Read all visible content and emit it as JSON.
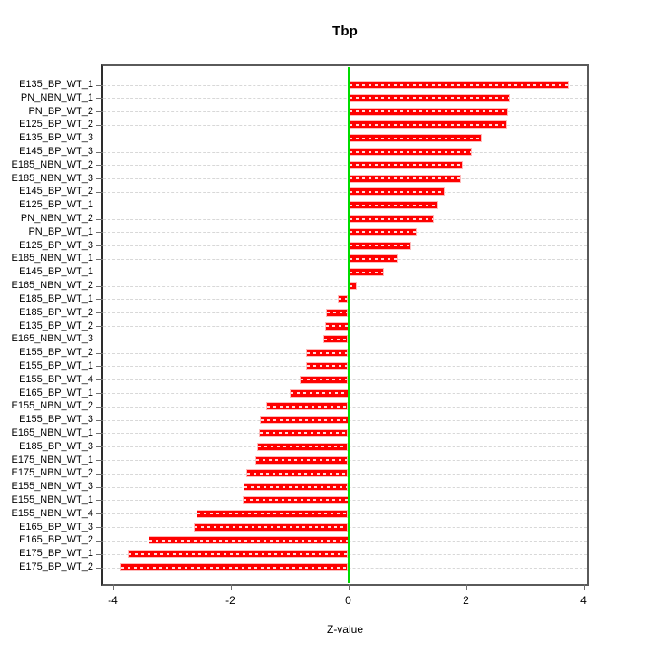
{
  "chart_data": {
    "type": "bar",
    "orientation": "horizontal",
    "title": "Tbp",
    "xlabel": "Z-value",
    "ylabel": "",
    "xlim": [
      -4.19,
      4.08
    ],
    "x_ticks": [
      -4,
      -2,
      0,
      2,
      4
    ],
    "grid": "horizontal-dashed",
    "legend": "none",
    "bar_color": "#fe0000",
    "zero_line_color": "#00dc00",
    "gridline_color": "#d8d8d8",
    "categories": [
      "E135_BP_WT_1",
      "PN_NBN_WT_1",
      "PN_BP_WT_2",
      "E125_BP_WT_2",
      "E135_BP_WT_3",
      "E145_BP_WT_3",
      "E185_NBN_WT_2",
      "E185_NBN_WT_3",
      "E145_BP_WT_2",
      "E125_BP_WT_1",
      "PN_NBN_WT_2",
      "PN_BP_WT_1",
      "E125_BP_WT_3",
      "E185_NBN_WT_1",
      "E145_BP_WT_1",
      "E165_NBN_WT_2",
      "E185_BP_WT_1",
      "E185_BP_WT_2",
      "E135_BP_WT_2",
      "E165_NBN_WT_3",
      "E155_BP_WT_2",
      "E155_BP_WT_1",
      "E155_BP_WT_4",
      "E165_BP_WT_1",
      "E155_NBN_WT_2",
      "E155_BP_WT_3",
      "E165_NBN_WT_1",
      "E185_BP_WT_3",
      "E175_NBN_WT_1",
      "E175_NBN_WT_2",
      "E155_NBN_WT_3",
      "E155_NBN_WT_1",
      "E155_NBN_WT_4",
      "E165_BP_WT_3",
      "E165_BP_WT_2",
      "E175_BP_WT_1",
      "E175_BP_WT_2"
    ],
    "values": [
      3.75,
      2.75,
      2.72,
      2.7,
      2.27,
      2.1,
      1.95,
      1.92,
      1.64,
      1.53,
      1.45,
      1.16,
      1.07,
      0.84,
      0.61,
      0.15,
      -0.18,
      -0.38,
      -0.4,
      -0.42,
      -0.71,
      -0.72,
      -0.83,
      -1.0,
      -1.39,
      -1.5,
      -1.51,
      -1.54,
      -1.57,
      -1.73,
      -1.77,
      -1.8,
      -2.58,
      -2.62,
      -3.4,
      -3.74,
      -3.87
    ]
  }
}
